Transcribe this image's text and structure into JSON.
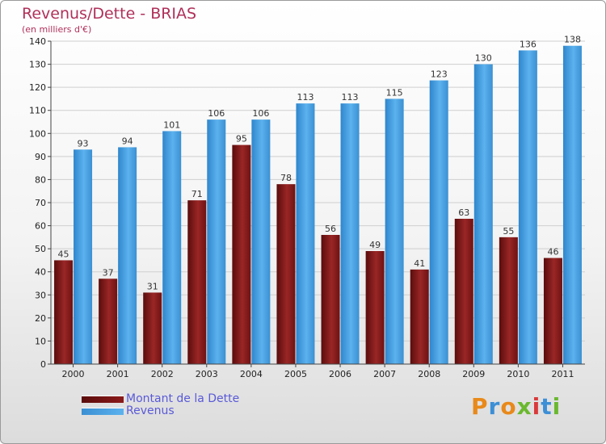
{
  "title": "Revenus/Dette - BRIAS",
  "subtitle": "(en milliers d'€)",
  "logo_text": "Proxiti",
  "colors": {
    "dette": "#8b1a1a",
    "revenus": "#4ea6e6",
    "title": "#b0305a",
    "legend_text": "#5a5ad8"
  },
  "chart_data": {
    "type": "bar",
    "title": "Revenus/Dette - BRIAS",
    "subtitle": "(en milliers d'€)",
    "categories": [
      "2000",
      "2001",
      "2002",
      "2003",
      "2004",
      "2005",
      "2006",
      "2007",
      "2008",
      "2009",
      "2010",
      "2011"
    ],
    "series": [
      {
        "name": "Montant de la Dette",
        "values": [
          45,
          37,
          31,
          71,
          95,
          78,
          56,
          49,
          41,
          63,
          55,
          46
        ]
      },
      {
        "name": "Revenus",
        "values": [
          93,
          94,
          101,
          106,
          106,
          113,
          113,
          115,
          123,
          130,
          136,
          138
        ]
      }
    ],
    "ylim": [
      0,
      140
    ],
    "yticks": [
      0,
      10,
      20,
      30,
      40,
      50,
      60,
      70,
      80,
      90,
      100,
      110,
      120,
      130,
      140
    ],
    "grid": true,
    "legend": "bottom-left"
  }
}
